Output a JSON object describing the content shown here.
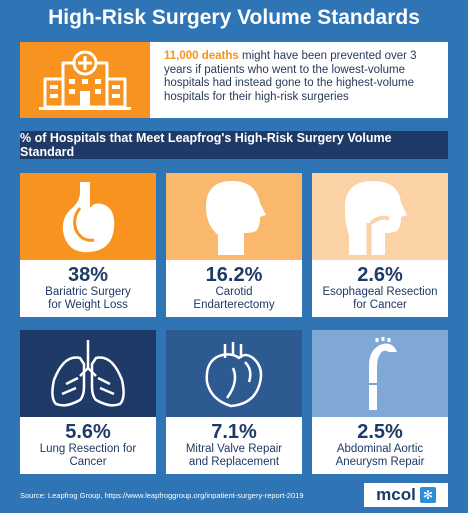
{
  "title": "High-Risk Surgery Volume Standards",
  "intro": {
    "highlight": "11,000 deaths",
    "text": " might have been prevented over 3 years if patients who went to the lowest-volume hospitals had instead gone to the highest-volume hospitals for their high-risk surgeries",
    "icon": "hospital-icon"
  },
  "banner": "% of Hospitals that Meet Leapfrog's High-Risk Surgery Volume Standard",
  "cards": [
    {
      "pct": "38%",
      "line1": "Bariatric Surgery",
      "line2": "for Weight Loss",
      "icon": "stomach-icon",
      "color": "#f7931e"
    },
    {
      "pct": "16.2%",
      "line1": "Carotid",
      "line2": "Endarterectomy",
      "icon": "head-profile-icon",
      "color": "#f9b86b"
    },
    {
      "pct": "2.6%",
      "line1": "Esophageal Resection",
      "line2": "for Cancer",
      "icon": "throat-profile-icon",
      "color": "#fbd2a5"
    },
    {
      "pct": "5.6%",
      "line1": "Lung Resection for",
      "line2": "Cancer",
      "icon": "lungs-icon",
      "color": "#1f3a66"
    },
    {
      "pct": "7.1%",
      "line1": "Mitral Valve Repair",
      "line2": "and Replacement",
      "icon": "heart-icon",
      "color": "#2e5a92"
    },
    {
      "pct": "2.5%",
      "line1": "Abdominal Aortic",
      "line2": "Aneurysm Repair",
      "icon": "aorta-icon",
      "color": "#7fa8d6"
    }
  ],
  "source": "Source:  Leapfrog Group, https://www.leapfroggroup.org/inpatient-surgery-report-2019",
  "logo": {
    "text": "mcol",
    "icon": "snowflake-icon"
  }
}
